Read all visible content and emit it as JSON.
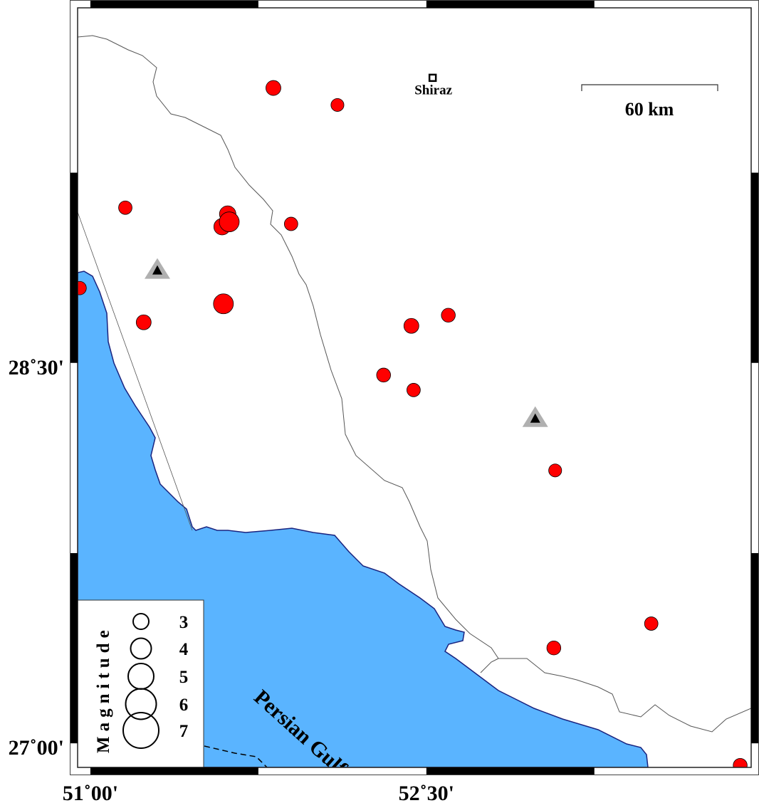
{
  "map": {
    "lon_range": [
      50.943,
      53.95
    ],
    "lat_range": [
      26.905,
      29.9
    ],
    "sea_color": "#5AB4FF",
    "quake_color": "#FF0000",
    "station_color": "#B0B0B0",
    "frame_style": "checkerboard"
  },
  "axes": {
    "x_ticks": [
      {
        "lon": 51.0,
        "label": "51˚00'"
      },
      {
        "lon": 52.5,
        "label": "52˚30'"
      }
    ],
    "y_ticks": [
      {
        "lat": 28.5,
        "label": "28˚30'"
      },
      {
        "lat": 27.0,
        "label": "27˚00'"
      }
    ]
  },
  "city": {
    "name": "Shiraz",
    "lon": 52.528,
    "lat": 29.624
  },
  "scale_bar": {
    "label": "60 km",
    "length_km": 60
  },
  "water_label": "Persian Gulf",
  "legend": {
    "title": "Magnitude",
    "entries": [
      {
        "mag": 3,
        "label": "3"
      },
      {
        "mag": 4,
        "label": "4"
      },
      {
        "mag": 5,
        "label": "5"
      },
      {
        "mag": 6,
        "label": "6"
      },
      {
        "mag": 7,
        "label": "7"
      }
    ]
  },
  "stations": [
    {
      "lon": 51.299,
      "lat": 28.868
    },
    {
      "lon": 52.986,
      "lat": 28.284
    }
  ],
  "earthquakes": [
    {
      "lon": 51.817,
      "lat": 29.584,
      "mag": 3.0
    },
    {
      "lon": 52.103,
      "lat": 29.517,
      "mag": 2.6
    },
    {
      "lon": 51.156,
      "lat": 29.112,
      "mag": 2.7
    },
    {
      "lon": 51.613,
      "lat": 29.087,
      "mag": 3.3
    },
    {
      "lon": 51.588,
      "lat": 29.037,
      "mag": 3.3
    },
    {
      "lon": 51.62,
      "lat": 29.056,
      "mag": 4.0
    },
    {
      "lon": 51.896,
      "lat": 29.048,
      "mag": 2.7
    },
    {
      "lon": 51.594,
      "lat": 28.733,
      "mag": 4.0
    },
    {
      "lon": 51.238,
      "lat": 28.66,
      "mag": 3.0
    },
    {
      "lon": 50.952,
      "lat": 28.795,
      "mag": 2.7
    },
    {
      "lon": 52.598,
      "lat": 28.688,
      "mag": 2.8
    },
    {
      "lon": 52.433,
      "lat": 28.646,
      "mag": 3.0
    },
    {
      "lon": 52.309,
      "lat": 28.452,
      "mag": 2.8
    },
    {
      "lon": 52.443,
      "lat": 28.393,
      "mag": 2.7
    },
    {
      "lon": 53.075,
      "lat": 28.076,
      "mag": 2.6
    },
    {
      "lon": 53.504,
      "lat": 27.472,
      "mag": 2.7
    },
    {
      "lon": 53.069,
      "lat": 27.376,
      "mag": 2.8
    },
    {
      "lon": 53.901,
      "lat": 26.913,
      "mag": 2.8
    }
  ]
}
